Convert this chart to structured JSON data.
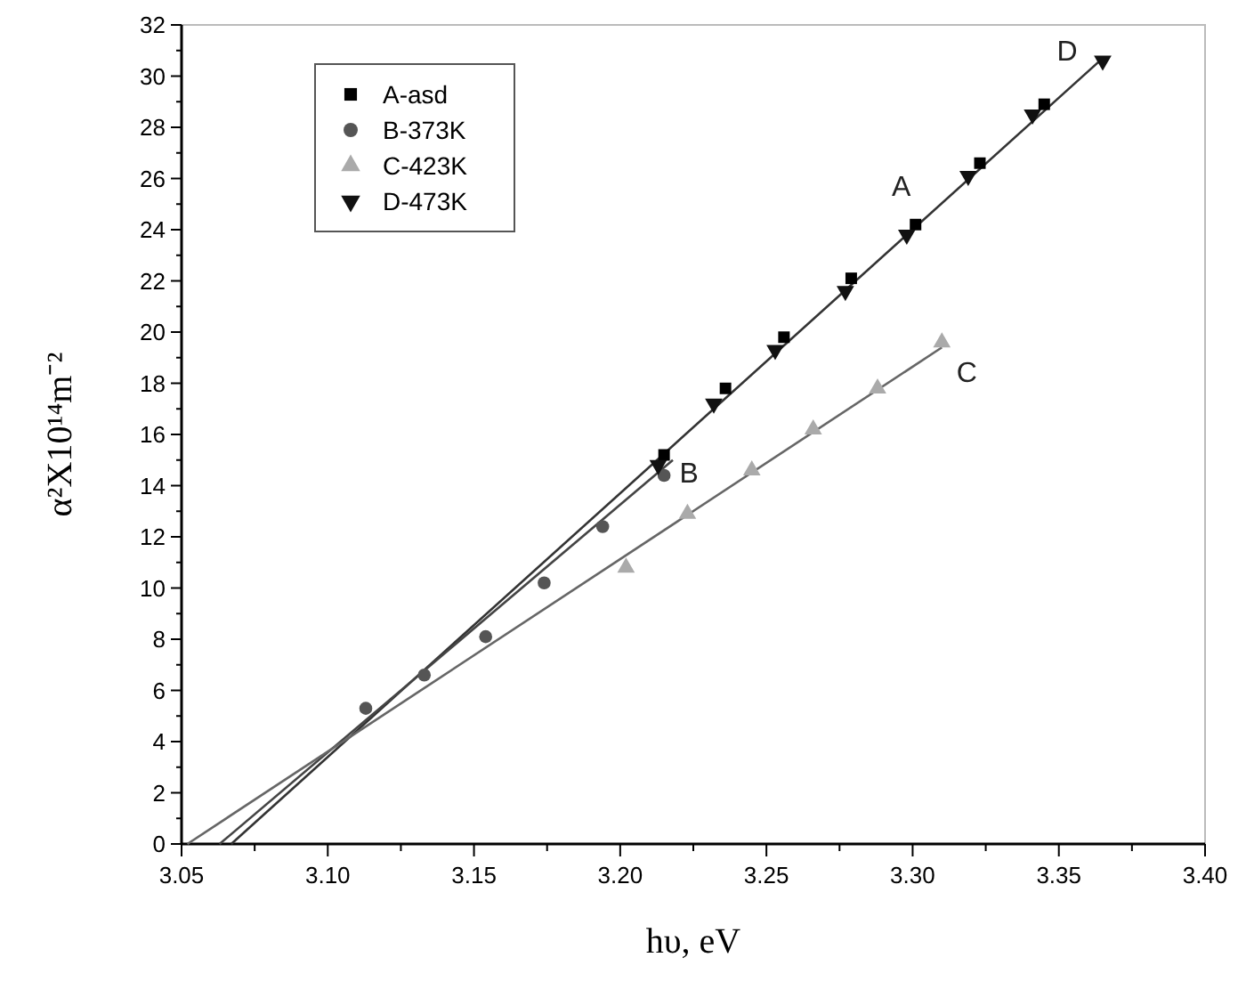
{
  "chart_data": {
    "type": "scatter",
    "xlabel": "hυ, eV",
    "ylabel": "α²X10¹⁴m⁻²",
    "xlim": [
      3.05,
      3.4
    ],
    "ylim": [
      0,
      32
    ],
    "xticks": [
      {
        "value": 3.05,
        "label": "3.05"
      },
      {
        "value": 3.075,
        "label": null
      },
      {
        "value": 3.1,
        "label": "3.10"
      },
      {
        "value": 3.125,
        "label": null
      },
      {
        "value": 3.15,
        "label": "3.15"
      },
      {
        "value": 3.175,
        "label": null
      },
      {
        "value": 3.2,
        "label": "3.20"
      },
      {
        "value": 3.225,
        "label": null
      },
      {
        "value": 3.25,
        "label": "3.25"
      },
      {
        "value": 3.275,
        "label": null
      },
      {
        "value": 3.3,
        "label": "3.30"
      },
      {
        "value": 3.325,
        "label": null
      },
      {
        "value": 3.35,
        "label": "3.35"
      },
      {
        "value": 3.375,
        "label": null
      },
      {
        "value": 3.4,
        "label": "3.40"
      }
    ],
    "yticks": [
      0,
      2,
      4,
      6,
      8,
      10,
      12,
      14,
      16,
      18,
      20,
      22,
      24,
      26,
      28,
      30,
      32
    ],
    "legend": "top left",
    "series": [
      {
        "name": "A-asd",
        "marker": "square",
        "color": "#000000",
        "x": [
          3.215,
          3.236,
          3.256,
          3.279,
          3.301,
          3.323,
          3.345
        ],
        "values": [
          15.2,
          17.8,
          19.8,
          22.1,
          24.2,
          26.6,
          28.9
        ]
      },
      {
        "name": "B-373K",
        "marker": "circle",
        "color": "#555555",
        "x": [
          3.113,
          3.133,
          3.154,
          3.174,
          3.194,
          3.215
        ],
        "values": [
          5.3,
          6.6,
          8.1,
          10.2,
          12.4,
          14.4
        ]
      },
      {
        "name": "C-423K",
        "marker": "triangle",
        "color": "#aaaaaa",
        "x": [
          3.202,
          3.223,
          3.245,
          3.266,
          3.288,
          3.31
        ],
        "values": [
          10.8,
          12.9,
          14.6,
          16.2,
          17.8,
          19.6
        ]
      },
      {
        "name": "D-473K",
        "marker": "triangle-down",
        "color": "#111111",
        "x": [
          3.213,
          3.232,
          3.253,
          3.277,
          3.298,
          3.319,
          3.341,
          3.365
        ],
        "values": [
          14.8,
          17.2,
          19.3,
          21.6,
          23.8,
          26.1,
          28.5,
          30.6
        ]
      },
      {
        "type": "line",
        "color": "#333333",
        "x": [
          3.067,
          3.365
        ],
        "values": [
          0,
          30.7
        ]
      },
      {
        "type": "line",
        "color": "#444444",
        "x": [
          3.063,
          3.218
        ],
        "values": [
          0,
          15.0
        ]
      },
      {
        "type": "line",
        "color": "#666666",
        "x": [
          3.052,
          3.31
        ],
        "values": [
          0,
          19.4
        ]
      }
    ],
    "annotations": [
      "A",
      "B",
      "C",
      "D"
    ]
  }
}
